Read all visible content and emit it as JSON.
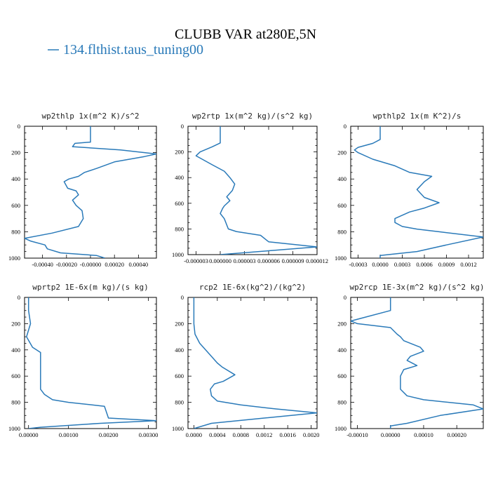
{
  "figure": {
    "title": "CLUBB VAR at280E,5N",
    "legend_label": "134.flthist.taus_tuning00",
    "line_color": "#2a7ab9"
  },
  "chart_data": [
    {
      "type": "line",
      "title": "wp2thlp  1x(m^2 K)/s^2",
      "xlim": [
        -0.00055,
        0.00055
      ],
      "ylim": [
        1000,
        0
      ],
      "xticks": [
        -0.0004,
        -0.0002,
        0,
        0.0002,
        0.0004
      ],
      "xticklabels": [
        "-0.00040",
        "-0.00020",
        "-0.00000",
        "0.00020",
        "0.00040"
      ],
      "yticks": [
        0,
        200,
        400,
        600,
        800,
        1000
      ],
      "yticklabels": [
        "0",
        "200",
        "400",
        "600",
        "800",
        "1000"
      ],
      "series": [
        {
          "x": [
            0,
            0,
            0,
            -0.00013,
            -0.00015,
            0.00025,
            0.00055,
            0.00045,
            0.0002,
            5e-05,
            -5e-05,
            -0.0001,
            -0.00018,
            -0.00022,
            -0.00019,
            -0.00012,
            -0.0001,
            -0.00015,
            -0.00012,
            -7e-05,
            -6e-05,
            -0.0001,
            -0.00032,
            -0.00055,
            -0.0005,
            -0.00038,
            -0.00036,
            -0.00025,
            5e-05,
            0.00012
          ],
          "y": [
            0,
            100,
            120,
            130,
            155,
            180,
            210,
            230,
            270,
            320,
            350,
            380,
            400,
            420,
            470,
            490,
            520,
            560,
            600,
            640,
            700,
            760,
            810,
            850,
            870,
            900,
            930,
            960,
            980,
            1000
          ]
        }
      ]
    },
    {
      "type": "line",
      "title": "wp2rtp  1x(m^2 kg)/(s^2 kg)",
      "xlim": [
        -4e-06,
        1.2e-05
      ],
      "ylim": [
        1000,
        0
      ],
      "xticks": [
        -3e-06,
        0,
        3e-06,
        6e-06,
        9e-06,
        1.2e-05
      ],
      "xticklabels": [
        "-0.000003",
        "0.000000",
        "0.000003",
        "0.000006",
        "0.000009",
        "0.000012"
      ],
      "yticks": [
        0,
        200,
        400,
        600,
        800,
        1000
      ],
      "yticklabels": [
        "0",
        "200",
        "400",
        "600",
        "800",
        "1000"
      ],
      "series": [
        {
          "x": [
            0,
            0,
            0,
            -1e-06,
            -2.5e-06,
            -3e-06,
            -1e-06,
            5e-07,
            1.2e-06,
            1.8e-06,
            1.5e-06,
            8e-07,
            1.2e-06,
            5e-07,
            3e-07,
            0,
            5e-07,
            1e-06,
            2e-06,
            5e-06,
            6e-06,
            9e-06,
            1.2e-05,
            6e-06,
            0
          ],
          "y": [
            0,
            100,
            130,
            160,
            200,
            230,
            300,
            350,
            400,
            450,
            500,
            550,
            580,
            620,
            640,
            680,
            720,
            800,
            820,
            850,
            900,
            920,
            940,
            970,
            1000
          ]
        }
      ]
    },
    {
      "type": "line",
      "title": "wpthlp2  1x(m K^2)/s",
      "xlim": [
        -0.0004,
        0.0014
      ],
      "ylim": [
        1000,
        0
      ],
      "xticks": [
        -0.0003,
        0,
        0.0003,
        0.0006,
        0.0009,
        0.0012
      ],
      "xticklabels": [
        "-0.0003",
        "0.0000",
        "0.0003",
        "0.0006",
        "0.0009",
        "0.0012"
      ],
      "yticks": [
        0,
        200,
        400,
        600,
        800,
        1000
      ],
      "yticklabels": [
        "0",
        "200",
        "400",
        "600",
        "800",
        "1000"
      ],
      "series": [
        {
          "x": [
            0,
            0,
            -0.0001,
            -0.0003,
            -0.00035,
            -0.0003,
            -0.0001,
            0.0002,
            0.0004,
            0.0007,
            0.0006,
            0.0005,
            0.0006,
            0.0008,
            0.0006,
            0.0004,
            0.0002,
            0.0002,
            0.0003,
            0.0005,
            0.0008,
            0.0014,
            0.0009,
            0.0005,
            0,
            0
          ],
          "y": [
            0,
            100,
            130,
            160,
            180,
            200,
            250,
            300,
            350,
            380,
            420,
            480,
            540,
            580,
            620,
            650,
            700,
            730,
            760,
            780,
            800,
            840,
            900,
            950,
            980,
            1000
          ]
        }
      ]
    },
    {
      "type": "line",
      "title": "wprtp2  1E-6x(m kg)/(s kg)",
      "xlim": [
        -0.0001,
        0.0032
      ],
      "ylim": [
        1000,
        0
      ],
      "xticks": [
        0,
        0.001,
        0.002,
        0.003
      ],
      "xticklabels": [
        "0.00000",
        "0.00100",
        "0.00200",
        "0.00300"
      ],
      "yticks": [
        0,
        200,
        400,
        600,
        800,
        1000
      ],
      "yticklabels": [
        "0",
        "200",
        "400",
        "600",
        "800",
        "1000"
      ],
      "series": [
        {
          "x": [
            0,
            0,
            5e-05,
            -5e-05,
            0.0001,
            0.0003,
            0.0003,
            0.0003,
            0.0003,
            0.0004,
            0.0005,
            0.0006,
            0.001,
            0.0019,
            0.002,
            0.0032,
            0.0018,
            0.0003,
            0
          ],
          "y": [
            0,
            100,
            200,
            300,
            380,
            420,
            500,
            600,
            700,
            740,
            760,
            780,
            800,
            830,
            920,
            940,
            960,
            990,
            1000
          ]
        }
      ]
    },
    {
      "type": "line",
      "title": "rcp2  1E-6x(kg^2)/(kg^2)",
      "xlim": [
        -0.0001,
        0.0021
      ],
      "ylim": [
        1000,
        0
      ],
      "xticks": [
        0,
        0.0004,
        0.0008,
        0.0012,
        0.0016,
        0.002
      ],
      "xticklabels": [
        "0.0000",
        "0.0004",
        "0.0008",
        "0.0012",
        "0.0016",
        "0.0020"
      ],
      "yticks": [
        0,
        200,
        400,
        600,
        800,
        1000
      ],
      "yticklabels": [
        "0",
        "200",
        "400",
        "600",
        "800",
        "1000"
      ],
      "series": [
        {
          "x": [
            0,
            0,
            2e-05,
            0.0001,
            0.0002,
            0.0003,
            0.0004,
            0.00048,
            0.0007,
            0.0005,
            0.00035,
            0.00028,
            0.0003,
            0.0004,
            0.0008,
            0.0014,
            0.0021,
            0.0012,
            0.0003,
            0
          ],
          "y": [
            0,
            200,
            280,
            350,
            400,
            450,
            500,
            530,
            590,
            640,
            660,
            700,
            750,
            790,
            820,
            850,
            880,
            920,
            960,
            1000
          ]
        }
      ]
    },
    {
      "type": "line",
      "title": "wp2rcp  1E-3x(m^2 kg)/(s^2 kg)",
      "xlim": [
        -0.00012,
        0.00028
      ],
      "ylim": [
        1000,
        0
      ],
      "xticks": [
        -0.0001,
        0,
        0.0001,
        0.0002
      ],
      "xticklabels": [
        "-0.00010",
        "0.00000",
        "0.00010",
        "0.00020"
      ],
      "yticks": [
        0,
        200,
        400,
        600,
        800,
        1000
      ],
      "yticklabels": [
        "0",
        "200",
        "400",
        "600",
        "800",
        "1000"
      ],
      "series": [
        {
          "x": [
            0,
            0,
            -0.00012,
            -0.0001,
            0,
            2e-05,
            3e-05,
            4e-05,
            9e-05,
            0.0001,
            6e-05,
            5e-05,
            8e-05,
            4e-05,
            3e-05,
            3e-05,
            5e-05,
            0.0001,
            0.00025,
            0.00028,
            0.00015,
            5e-05,
            0,
            0
          ],
          "y": [
            0,
            100,
            180,
            200,
            230,
            280,
            300,
            330,
            380,
            410,
            450,
            480,
            520,
            550,
            600,
            700,
            750,
            780,
            820,
            850,
            900,
            960,
            980,
            1000
          ]
        }
      ]
    }
  ]
}
